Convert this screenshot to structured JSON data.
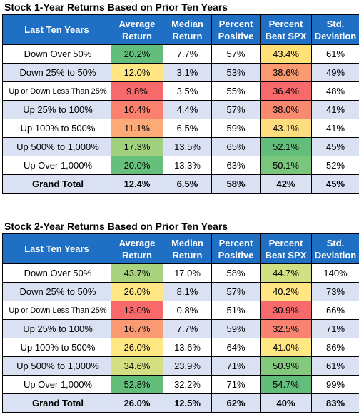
{
  "columns": [
    "Last Ten Years",
    "Average\nReturn",
    "Median\nReturn",
    "Percent\nPositive",
    "Percent\nBeat SPX",
    "Std.\nDeviation"
  ],
  "tables": [
    {
      "title": "Stock 1-Year Returns Based on Prior Ten Years",
      "rows": [
        {
          "label": "Down Over 50%",
          "avg": "20.2%",
          "avg_color": "#63be7b",
          "median": "7.7%",
          "positive": "57%",
          "beat": "43.4%",
          "beat_color": "#ffe178",
          "std": "61%"
        },
        {
          "label": "Down 25% to 50%",
          "avg": "12.0%",
          "avg_color": "#ffe584",
          "median": "3.1%",
          "positive": "53%",
          "beat": "38.6%",
          "beat_color": "#fb9a71",
          "std": "49%"
        },
        {
          "label": "Up or Down Less Than 25%",
          "avg": "9.8%",
          "avg_color": "#f8696b",
          "median": "3.5%",
          "positive": "55%",
          "beat": "36.4%",
          "beat_color": "#f8696b",
          "std": "48%"
        },
        {
          "label": "Up 25% to 100%",
          "avg": "10.4%",
          "avg_color": "#f9816e",
          "median": "4.4%",
          "positive": "57%",
          "beat": "38.0%",
          "beat_color": "#fa8a6f",
          "std": "41%"
        },
        {
          "label": "Up 100% to 500%",
          "avg": "11.1%",
          "avg_color": "#fcaa77",
          "median": "6.5%",
          "positive": "59%",
          "beat": "43.1%",
          "beat_color": "#fedd7f",
          "std": "41%"
        },
        {
          "label": "Up 500% to 1,000%",
          "avg": "17.3%",
          "avg_color": "#a1d07f",
          "median": "13.5%",
          "positive": "65%",
          "beat": "52.1%",
          "beat_color": "#63be7b",
          "std": "45%"
        },
        {
          "label": "Up Over 1,000%",
          "avg": "20.0%",
          "avg_color": "#66bf7b",
          "median": "13.3%",
          "positive": "63%",
          "beat": "50.1%",
          "beat_color": "#7bc67d",
          "std": "52%"
        }
      ],
      "total": {
        "label": "Grand Total",
        "avg": "12.4%",
        "median": "6.5%",
        "positive": "58%",
        "beat": "42%",
        "std": "45%"
      }
    },
    {
      "title": "Stock 2-Year Returns Based on Prior Ten Years",
      "rows": [
        {
          "label": "Down Over 50%",
          "avg": "43.7%",
          "avg_color": "#a9d27f",
          "median": "17.0%",
          "positive": "58%",
          "beat": "44.7%",
          "beat_color": "#d2df82",
          "std": "140%"
        },
        {
          "label": "Down 25% to 50%",
          "avg": "26.0%",
          "avg_color": "#ffe884",
          "median": "8.1%",
          "positive": "57%",
          "beat": "40.2%",
          "beat_color": "#ffe683",
          "std": "73%"
        },
        {
          "label": "Up or Down Less Than 25%",
          "avg": "13.0%",
          "avg_color": "#f8696b",
          "median": "0.8%",
          "positive": "51%",
          "beat": "30.9%",
          "beat_color": "#f8696b",
          "std": "66%"
        },
        {
          "label": "Up 25% to 100%",
          "avg": "16.7%",
          "avg_color": "#fa9b73",
          "median": "7.7%",
          "positive": "59%",
          "beat": "32.5%",
          "beat_color": "#f98370",
          "std": "71%"
        },
        {
          "label": "Up 100% to 500%",
          "avg": "26.0%",
          "avg_color": "#ffe884",
          "median": "13.6%",
          "positive": "64%",
          "beat": "41.0%",
          "beat_color": "#ffe884",
          "std": "86%"
        },
        {
          "label": "Up 500% to 1,000%",
          "avg": "34.6%",
          "avg_color": "#d3df82",
          "median": "23.9%",
          "positive": "71%",
          "beat": "50.9%",
          "beat_color": "#82c87d",
          "std": "61%"
        },
        {
          "label": "Up Over 1,000%",
          "avg": "52.8%",
          "avg_color": "#63be7b",
          "median": "32.2%",
          "positive": "71%",
          "beat": "54.7%",
          "beat_color": "#63be7b",
          "std": "99%"
        }
      ],
      "total": {
        "label": "Grand Total",
        "avg": "26.0%",
        "median": "12.5%",
        "positive": "62%",
        "beat": "40%",
        "std": "83%"
      }
    }
  ]
}
